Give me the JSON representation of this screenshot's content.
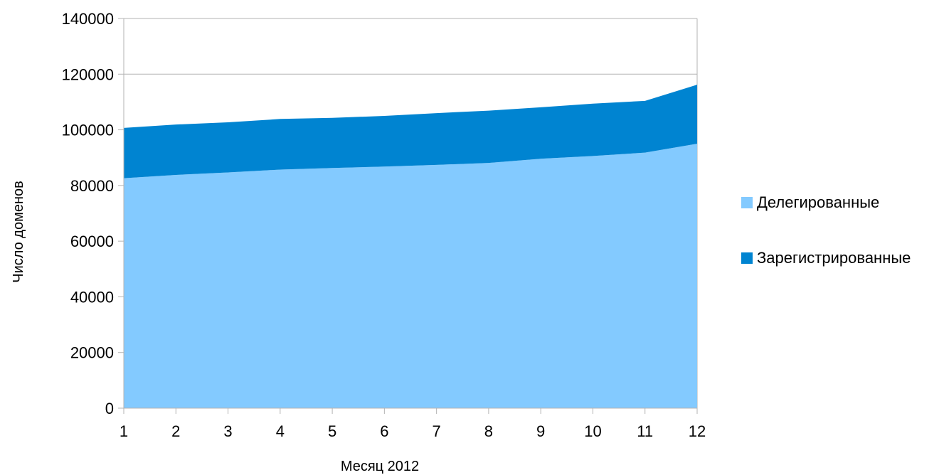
{
  "chart_data": {
    "type": "area",
    "stacked": true,
    "title": "",
    "xlabel": "Месяц 2012",
    "ylabel": "Число доменов",
    "x": [
      1,
      2,
      3,
      4,
      5,
      6,
      7,
      8,
      9,
      10,
      11,
      12
    ],
    "ylim": [
      0,
      140000
    ],
    "yticks": [
      0,
      20000,
      40000,
      60000,
      80000,
      100000,
      120000,
      140000
    ],
    "grid": "horizontal",
    "legend_position": "right",
    "series": [
      {
        "name": "Делегированные",
        "color": "#83CAFF",
        "values": [
          82600,
          83800,
          84700,
          85700,
          86300,
          86800,
          87400,
          88100,
          89600,
          90600,
          91800,
          95000
        ]
      },
      {
        "name": "Зарегистрированные",
        "color": "#0084D1",
        "values": [
          18100,
          18100,
          18000,
          18200,
          18000,
          18200,
          18600,
          18800,
          18500,
          18800,
          18600,
          21200
        ]
      }
    ]
  }
}
